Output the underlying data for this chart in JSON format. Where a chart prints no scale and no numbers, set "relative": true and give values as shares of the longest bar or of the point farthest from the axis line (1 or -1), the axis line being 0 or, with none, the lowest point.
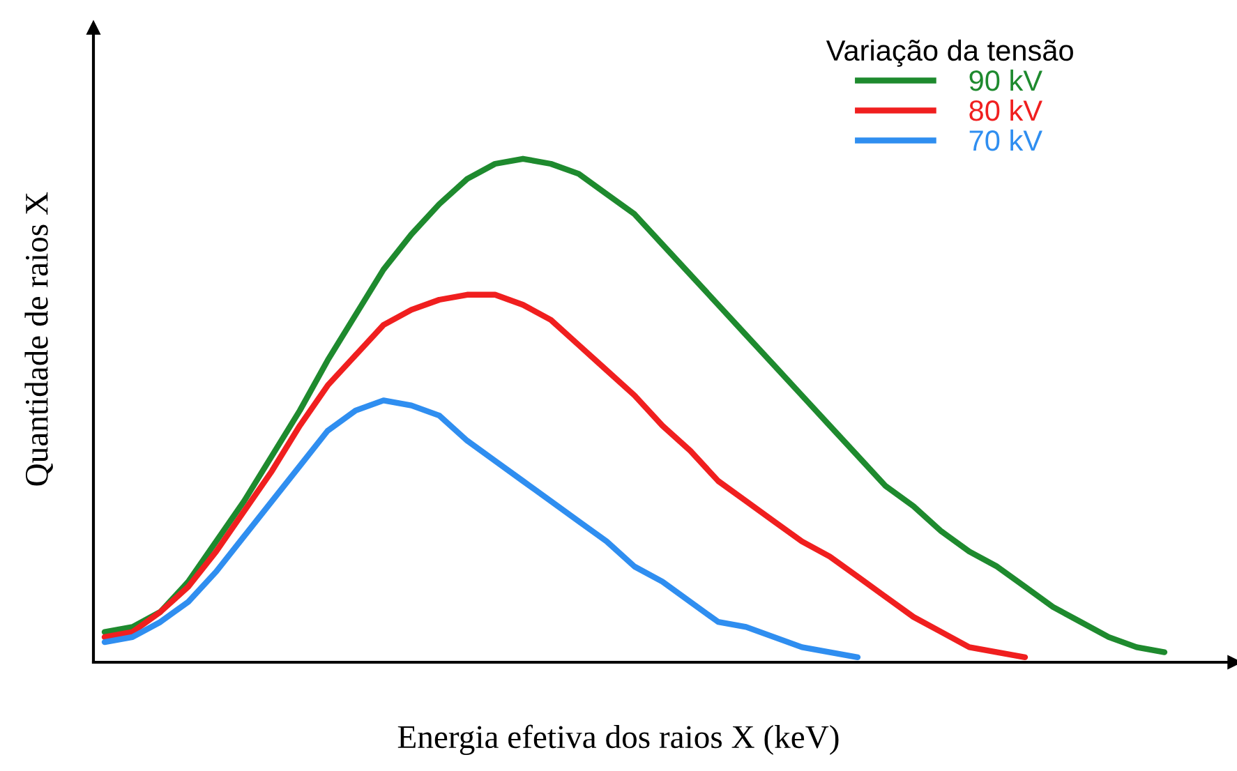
{
  "chart_data": {
    "type": "line",
    "relative": true,
    "xlabel": "Energia efetiva dos raios X (keV)",
    "ylabel": "Quantidade de raios X",
    "legend_title": "Variação da tensão",
    "legend": "top right",
    "grid": false,
    "marker": "none",
    "line_style": "solid",
    "categories": [
      null,
      null,
      null,
      null,
      null,
      null,
      null,
      null,
      null,
      null,
      null,
      null,
      null,
      null,
      null,
      null,
      null,
      null,
      null,
      null,
      null,
      null,
      null,
      null,
      null,
      null,
      null,
      null,
      null,
      null,
      null,
      null,
      null,
      null,
      null,
      null,
      null,
      null,
      null
    ],
    "series": [
      {
        "name": "90 kV",
        "color": "#1e8a2e",
        "values": [
          0.06,
          0.07,
          0.1,
          0.16,
          0.24,
          0.32,
          0.41,
          0.5,
          0.6,
          0.69,
          0.78,
          0.85,
          0.91,
          0.96,
          0.99,
          1,
          0.99,
          0.97,
          0.93,
          0.89,
          0.83,
          0.77,
          0.71,
          0.65,
          0.59,
          0.53,
          0.47,
          0.41,
          0.35,
          0.31,
          0.26,
          0.22,
          0.19,
          0.15,
          0.11,
          0.08,
          0.05,
          0.03,
          0.02
        ]
      },
      {
        "name": "80 kV",
        "color": "#f01f1f",
        "values": [
          0.05,
          0.06,
          0.1,
          0.15,
          0.22,
          0.3,
          0.38,
          0.47,
          0.55,
          0.61,
          0.67,
          0.7,
          0.72,
          0.73,
          0.73,
          0.71,
          0.68,
          0.63,
          0.58,
          0.53,
          0.47,
          0.42,
          0.36,
          0.32,
          0.28,
          0.24,
          0.21,
          0.17,
          0.13,
          0.09,
          0.06,
          0.03,
          0.02,
          0.01,
          null,
          null,
          null,
          null,
          null
        ]
      },
      {
        "name": "70 kV",
        "color": "#2f8ef0",
        "values": [
          0.04,
          0.05,
          0.08,
          0.12,
          0.18,
          0.25,
          0.32,
          0.39,
          0.46,
          0.5,
          0.52,
          0.51,
          0.49,
          0.44,
          0.4,
          0.36,
          0.32,
          0.28,
          0.24,
          0.19,
          0.16,
          0.12,
          0.08,
          0.07,
          0.05,
          0.03,
          0.02,
          0.01,
          null,
          null,
          null,
          null,
          null,
          null,
          null,
          null,
          null,
          null,
          null
        ]
      }
    ]
  }
}
